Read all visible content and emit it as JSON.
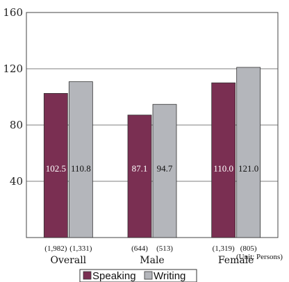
{
  "chart_data": {
    "type": "bar",
    "categories": [
      "Overall",
      "Male",
      "Female"
    ],
    "series": [
      {
        "name": "Speaking",
        "values": [
          102.5,
          87.1,
          110.0
        ],
        "labels": [
          "102.5",
          "87.1",
          "110.0"
        ],
        "counts": [
          "(1,982)",
          "(644)",
          "(1,319)"
        ],
        "color": "#7a2f52"
      },
      {
        "name": "Writing",
        "values": [
          110.8,
          94.7,
          121.0
        ],
        "labels": [
          "110.8",
          "94.7",
          "121.0"
        ],
        "counts": [
          "(1,331)",
          "(513)",
          "(805)"
        ],
        "color": "#b4b6bb"
      }
    ],
    "yticks": [
      "40",
      "80",
      "120",
      "160"
    ],
    "ylim": [
      0,
      160
    ],
    "grid": true,
    "legend": "bottom",
    "unit_note": "(Unit: Persons)"
  }
}
